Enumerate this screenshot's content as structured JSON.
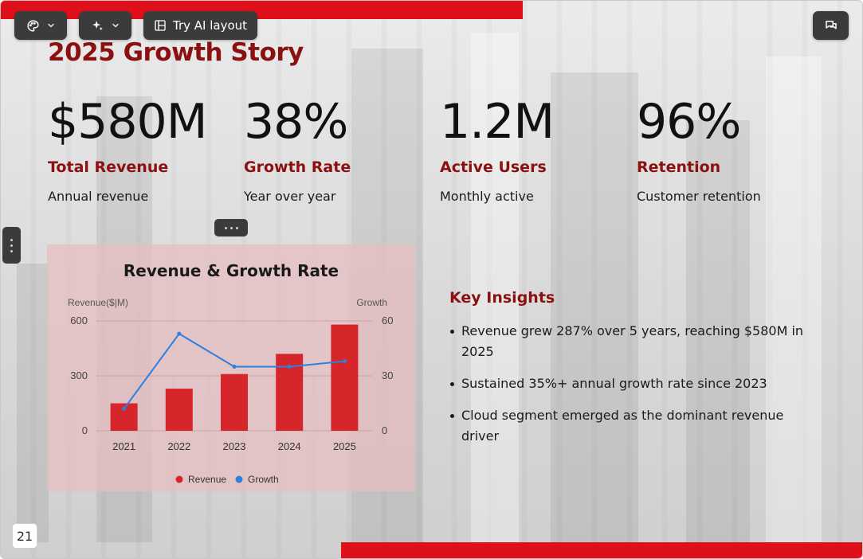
{
  "toolbar": {
    "theme_icon": "palette-icon",
    "ai_icon": "sparkle-icon",
    "layout_icon": "layout-icon",
    "layout_label": "Try AI layout",
    "comments_icon": "comment-icon"
  },
  "slide": {
    "title": "2025 Growth Story",
    "page_number": "21"
  },
  "stats": [
    {
      "value": "$580M",
      "label": "Total Revenue",
      "sub": "Annual revenue"
    },
    {
      "value": "38%",
      "label": "Growth Rate",
      "sub": "Year over year"
    },
    {
      "value": "1.2M",
      "label": "Active Users",
      "sub": "Monthly active"
    },
    {
      "value": "96%",
      "label": "Retention",
      "sub": "Customer retention"
    }
  ],
  "insights": {
    "title": "Key Insights",
    "items": [
      "Revenue grew 287% over 5 years, reaching $580M in 2025",
      "Sustained 35%+ annual growth rate since 2023",
      "Cloud segment emerged as the dominant revenue driver"
    ]
  },
  "colors": {
    "accent_red": "#e0101a",
    "title_red": "#8b1111",
    "revenue_bar": "#d7262b",
    "growth_line": "#2f7fe0"
  },
  "chart_data": {
    "type": "bar",
    "title": "Revenue & Growth Rate",
    "categories": [
      "2021",
      "2022",
      "2023",
      "2024",
      "2025"
    ],
    "ylabel": "Revenue($|M)",
    "y2label": "Growth",
    "ylim": [
      0,
      600
    ],
    "y2lim": [
      0,
      60
    ],
    "yticks": [
      "0",
      "300",
      "600"
    ],
    "y2ticks": [
      "0",
      "30",
      "60"
    ],
    "grid": true,
    "legend_position": "bottom",
    "series": [
      {
        "name": "Revenue",
        "type": "bar",
        "axis": "left",
        "values": [
          150,
          230,
          310,
          420,
          580
        ]
      },
      {
        "name": "Growth",
        "type": "line",
        "axis": "right",
        "values": [
          12,
          53,
          35,
          35,
          38
        ]
      }
    ]
  }
}
